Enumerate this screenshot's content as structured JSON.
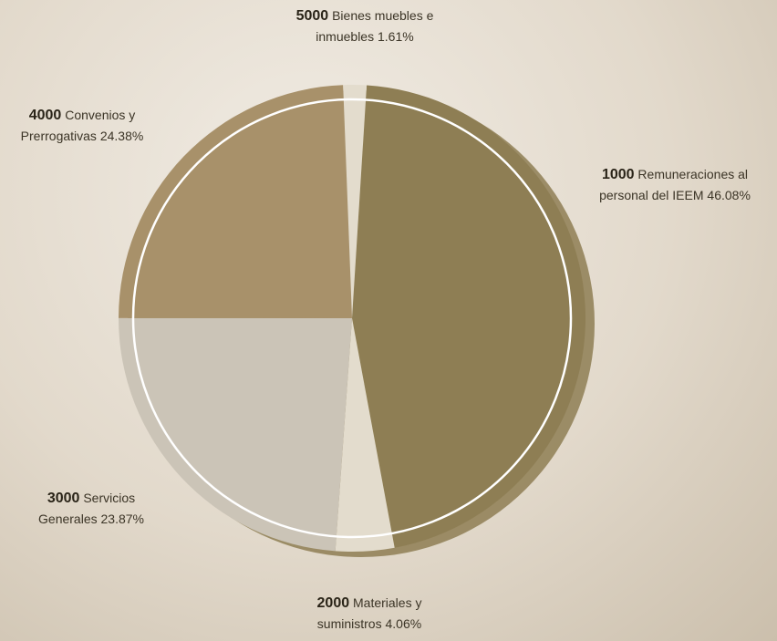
{
  "chart_data": {
    "type": "pie",
    "codes": [
      "1000",
      "2000",
      "3000",
      "4000",
      "5000"
    ],
    "categories": [
      "Remuneraciones al personal del IEEM",
      "Materiales y suministros",
      "Servicios Generales",
      "Convenios y Prerrogativas",
      "Bienes muebles e inmuebles"
    ],
    "values": [
      46.08,
      4.06,
      23.87,
      24.38,
      1.61
    ],
    "value_labels": [
      "46.08%",
      "4.06%",
      "23.87%",
      "24.38%",
      "1.61%"
    ],
    "colors": [
      "#8e7e54",
      "#e3dccd",
      "#cbc4b7",
      "#a8916a",
      "#e3dccd"
    ]
  }
}
